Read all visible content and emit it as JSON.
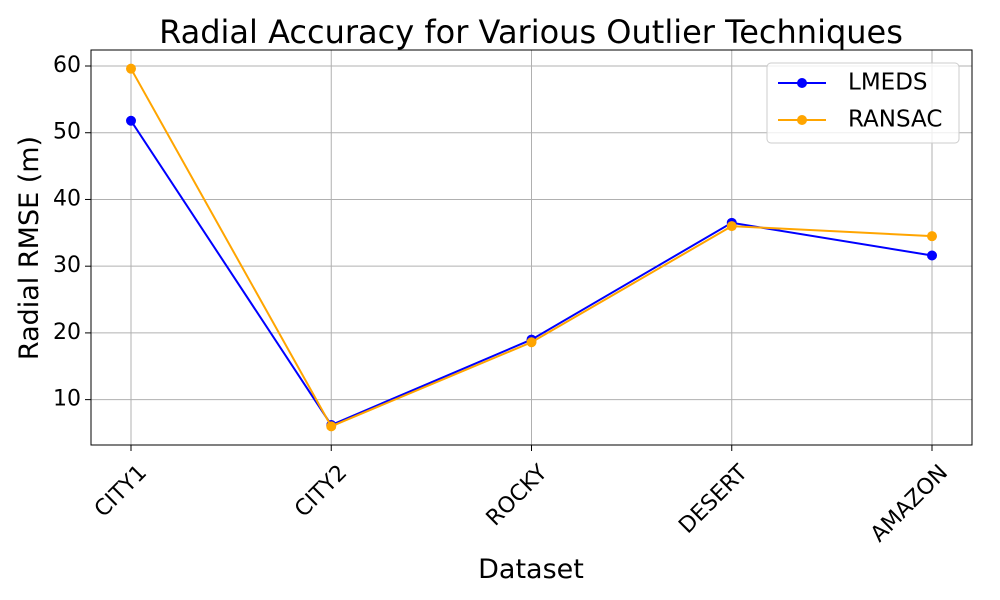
{
  "chart_data": {
    "type": "line",
    "title": "Radial Accuracy for Various Outlier Techniques",
    "xlabel": "Dataset",
    "ylabel": "Radial RMSE (m)",
    "categories": [
      "CITY1",
      "CITY2",
      "ROCKY",
      "DESERT",
      "AMAZON"
    ],
    "ylim": [
      3.2,
      62.4
    ],
    "yticks": [
      10,
      20,
      30,
      40,
      50,
      60
    ],
    "grid": true,
    "legend_position": "top-right",
    "series": [
      {
        "name": "LMEDS",
        "color": "#0000ff",
        "values": [
          51.8,
          6.2,
          19.0,
          36.5,
          31.6
        ]
      },
      {
        "name": "RANSAC",
        "color": "#ffa500",
        "values": [
          59.6,
          6.0,
          18.6,
          36.0,
          34.5
        ]
      }
    ]
  }
}
